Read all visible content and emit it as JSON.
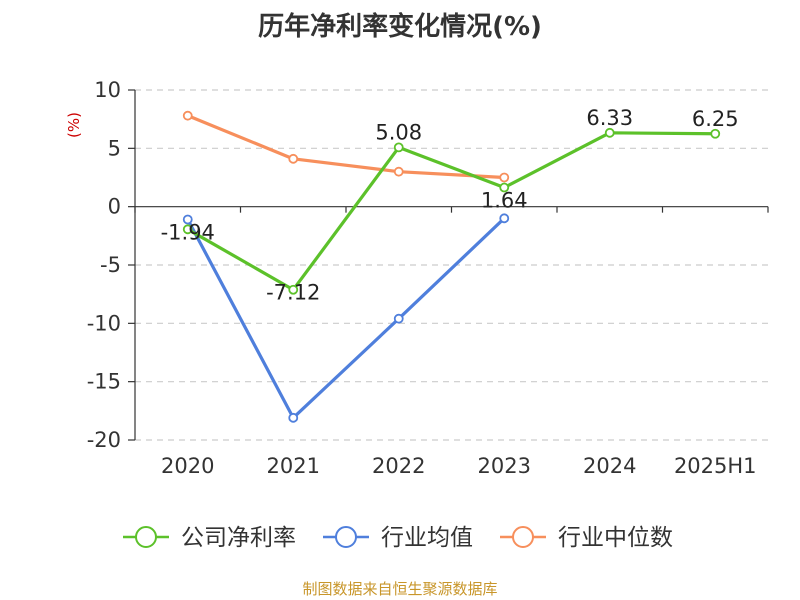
{
  "chart_data": {
    "type": "line",
    "title": "历年净利率变化情况(%)",
    "ylabel": "(%)",
    "ylim": [
      -20,
      10
    ],
    "yticks": [
      10,
      5,
      0,
      -5,
      -10,
      -15,
      -20
    ],
    "categories": [
      "2020",
      "2021",
      "2022",
      "2023",
      "2024",
      "2025H1"
    ],
    "grid": true,
    "legend_position": "bottom",
    "series": [
      {
        "name": "公司净利率",
        "color": "#5cc12a",
        "values": [
          -1.94,
          -7.12,
          5.08,
          1.64,
          6.33,
          6.25
        ],
        "labels": [
          "-1.94",
          "-7.12",
          "5.08",
          "1.64",
          "6.33",
          "6.25"
        ]
      },
      {
        "name": "行业均值",
        "color": "#4f7fdc",
        "values": [
          -1.1,
          -18.1,
          -9.6,
          -1.0,
          null,
          null
        ]
      },
      {
        "name": "行业中位数",
        "color": "#f78f5c",
        "values": [
          7.8,
          4.1,
          3.0,
          2.5,
          null,
          null
        ]
      }
    ]
  },
  "source": "制图数据来自恒生聚源数据库"
}
